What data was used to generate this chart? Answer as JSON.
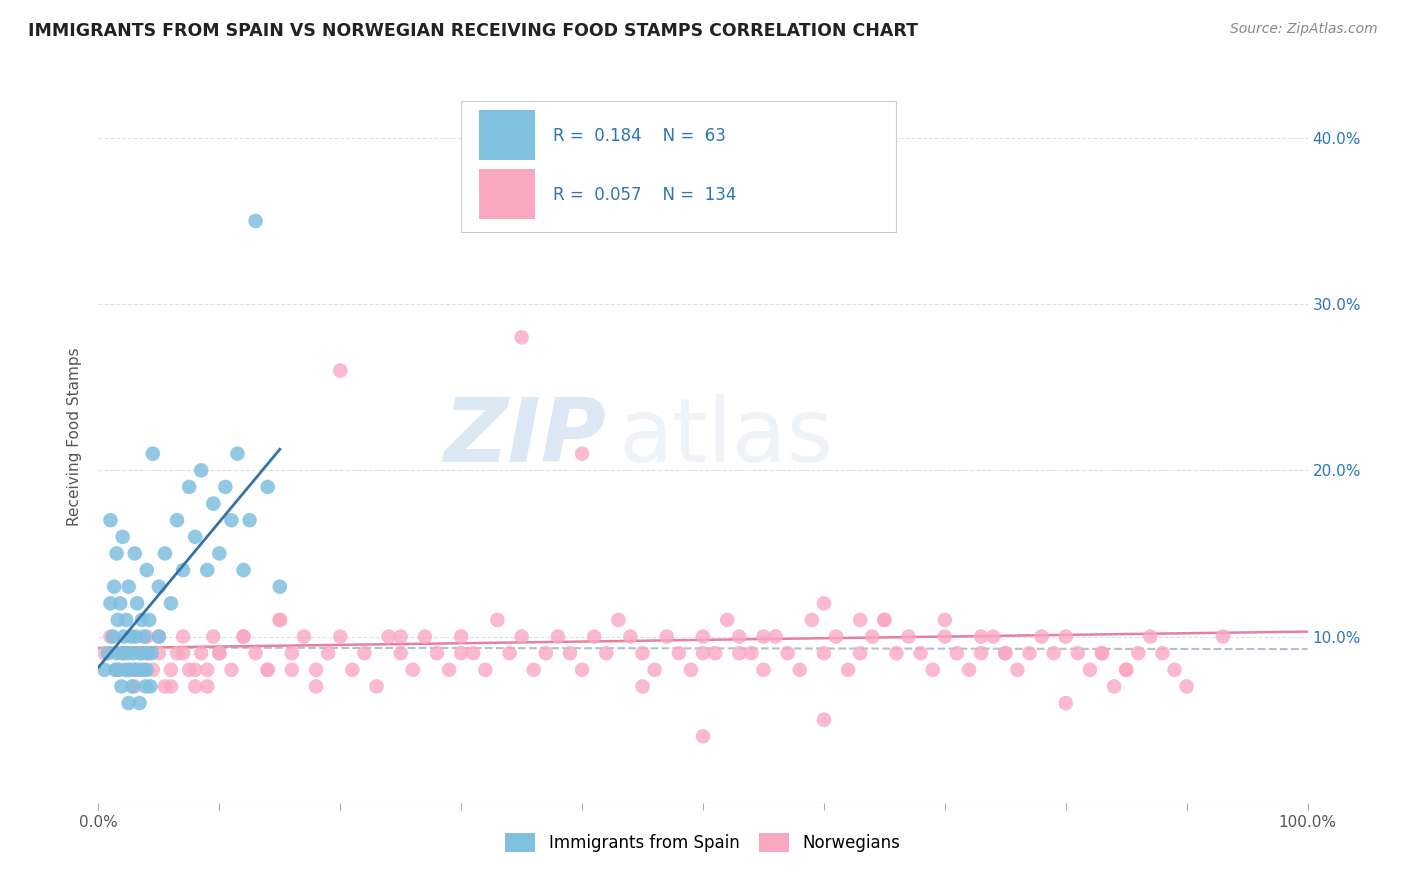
{
  "title": "IMMIGRANTS FROM SPAIN VS NORWEGIAN RECEIVING FOOD STAMPS CORRELATION CHART",
  "source": "Source: ZipAtlas.com",
  "ylabel": "Receiving Food Stamps",
  "ytick_labels": [
    "",
    "10.0%",
    "20.0%",
    "30.0%",
    "40.0%"
  ],
  "ytick_values": [
    0,
    0.1,
    0.2,
    0.3,
    0.4
  ],
  "xlim": [
    0.0,
    1.0
  ],
  "ylim": [
    0.0,
    0.44
  ],
  "legend_R1": "0.184",
  "legend_N1": "63",
  "legend_R2": "0.057",
  "legend_N2": "134",
  "color_spain": "#7fbfdf",
  "color_norway": "#f9a8c0",
  "color_spain_line": "#3572a5",
  "color_norway_line": "#e87fa0",
  "color_norway_dash": "#b0c0d0",
  "background_color": "#ffffff",
  "watermark_text": "ZIP",
  "watermark_text2": "atlas",
  "spain_scatter_x": [
    0.005,
    0.008,
    0.01,
    0.01,
    0.012,
    0.013,
    0.014,
    0.015,
    0.015,
    0.016,
    0.017,
    0.018,
    0.019,
    0.02,
    0.02,
    0.021,
    0.022,
    0.023,
    0.024,
    0.025,
    0.025,
    0.026,
    0.027,
    0.028,
    0.029,
    0.03,
    0.03,
    0.031,
    0.032,
    0.033,
    0.034,
    0.035,
    0.036,
    0.037,
    0.038,
    0.039,
    0.04,
    0.04,
    0.041,
    0.042,
    0.043,
    0.044,
    0.045,
    0.05,
    0.05,
    0.055,
    0.06,
    0.065,
    0.07,
    0.075,
    0.08,
    0.085,
    0.09,
    0.095,
    0.1,
    0.105,
    0.11,
    0.115,
    0.12,
    0.125,
    0.13,
    0.14,
    0.15
  ],
  "spain_scatter_y": [
    0.08,
    0.09,
    0.12,
    0.17,
    0.1,
    0.13,
    0.08,
    0.09,
    0.15,
    0.11,
    0.08,
    0.12,
    0.07,
    0.09,
    0.16,
    0.1,
    0.08,
    0.11,
    0.09,
    0.06,
    0.13,
    0.08,
    0.1,
    0.07,
    0.09,
    0.08,
    0.15,
    0.1,
    0.12,
    0.08,
    0.06,
    0.09,
    0.11,
    0.08,
    0.1,
    0.07,
    0.08,
    0.14,
    0.09,
    0.11,
    0.07,
    0.09,
    0.21,
    0.13,
    0.1,
    0.15,
    0.12,
    0.17,
    0.14,
    0.19,
    0.16,
    0.2,
    0.14,
    0.18,
    0.15,
    0.19,
    0.17,
    0.21,
    0.14,
    0.17,
    0.35,
    0.19,
    0.13
  ],
  "norway_scatter_x": [
    0.005,
    0.01,
    0.015,
    0.02,
    0.025,
    0.03,
    0.035,
    0.04,
    0.045,
    0.05,
    0.055,
    0.06,
    0.065,
    0.07,
    0.075,
    0.08,
    0.085,
    0.09,
    0.095,
    0.1,
    0.11,
    0.12,
    0.13,
    0.14,
    0.15,
    0.16,
    0.17,
    0.18,
    0.19,
    0.2,
    0.21,
    0.22,
    0.23,
    0.24,
    0.25,
    0.26,
    0.27,
    0.28,
    0.29,
    0.3,
    0.31,
    0.32,
    0.33,
    0.34,
    0.35,
    0.36,
    0.37,
    0.38,
    0.39,
    0.4,
    0.41,
    0.42,
    0.43,
    0.44,
    0.45,
    0.46,
    0.47,
    0.48,
    0.49,
    0.5,
    0.51,
    0.52,
    0.53,
    0.54,
    0.55,
    0.56,
    0.57,
    0.58,
    0.59,
    0.6,
    0.61,
    0.62,
    0.63,
    0.64,
    0.65,
    0.66,
    0.67,
    0.68,
    0.69,
    0.7,
    0.71,
    0.72,
    0.73,
    0.74,
    0.75,
    0.76,
    0.77,
    0.78,
    0.79,
    0.8,
    0.81,
    0.82,
    0.83,
    0.84,
    0.85,
    0.86,
    0.87,
    0.88,
    0.89,
    0.9,
    0.15,
    0.25,
    0.35,
    0.45,
    0.55,
    0.65,
    0.75,
    0.85,
    0.2,
    0.3,
    0.4,
    0.5,
    0.6,
    0.7,
    0.8,
    0.53,
    0.63,
    0.73,
    0.83,
    0.93,
    0.03,
    0.04,
    0.05,
    0.06,
    0.07,
    0.08,
    0.09,
    0.1,
    0.12,
    0.14,
    0.16,
    0.18,
    0.5,
    0.6
  ],
  "norway_scatter_y": [
    0.09,
    0.1,
    0.08,
    0.09,
    0.08,
    0.07,
    0.09,
    0.1,
    0.08,
    0.09,
    0.07,
    0.08,
    0.09,
    0.1,
    0.08,
    0.07,
    0.09,
    0.08,
    0.1,
    0.09,
    0.08,
    0.1,
    0.09,
    0.08,
    0.11,
    0.09,
    0.1,
    0.08,
    0.09,
    0.1,
    0.08,
    0.09,
    0.07,
    0.1,
    0.09,
    0.08,
    0.1,
    0.09,
    0.08,
    0.1,
    0.09,
    0.08,
    0.11,
    0.09,
    0.1,
    0.08,
    0.09,
    0.1,
    0.09,
    0.08,
    0.1,
    0.09,
    0.11,
    0.1,
    0.09,
    0.08,
    0.1,
    0.09,
    0.08,
    0.1,
    0.09,
    0.11,
    0.1,
    0.09,
    0.08,
    0.1,
    0.09,
    0.08,
    0.11,
    0.09,
    0.1,
    0.08,
    0.09,
    0.1,
    0.11,
    0.09,
    0.1,
    0.09,
    0.08,
    0.1,
    0.09,
    0.08,
    0.09,
    0.1,
    0.09,
    0.08,
    0.09,
    0.1,
    0.09,
    0.1,
    0.09,
    0.08,
    0.09,
    0.07,
    0.08,
    0.09,
    0.1,
    0.09,
    0.08,
    0.07,
    0.11,
    0.1,
    0.28,
    0.07,
    0.1,
    0.11,
    0.09,
    0.08,
    0.26,
    0.09,
    0.21,
    0.09,
    0.12,
    0.11,
    0.06,
    0.09,
    0.11,
    0.1,
    0.09,
    0.1,
    0.08,
    0.09,
    0.1,
    0.07,
    0.09,
    0.08,
    0.07,
    0.09,
    0.1,
    0.08,
    0.08,
    0.07,
    0.04,
    0.05
  ]
}
